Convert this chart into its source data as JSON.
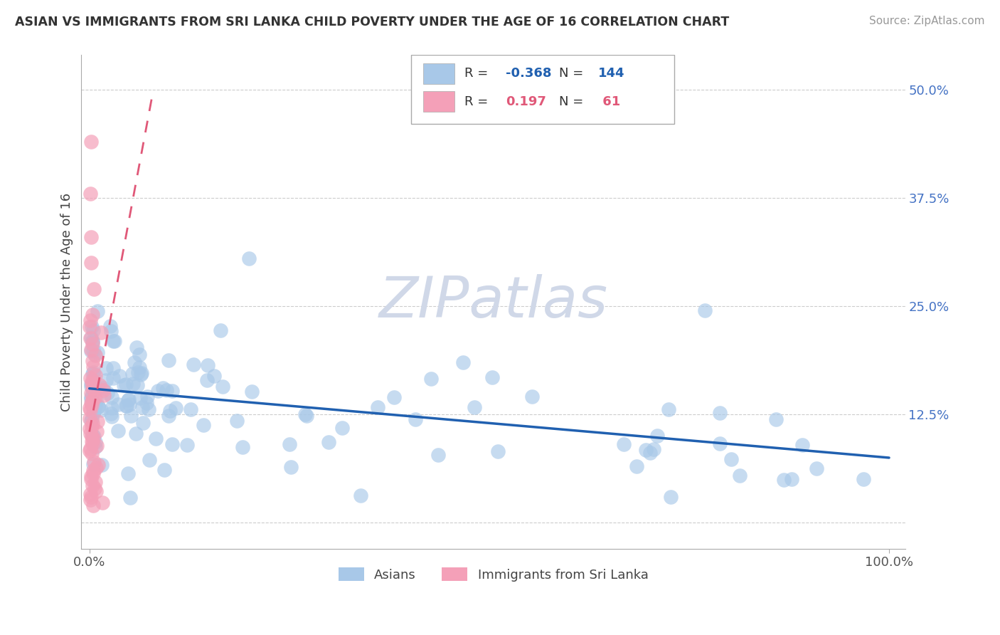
{
  "title": "ASIAN VS IMMIGRANTS FROM SRI LANKA CHILD POVERTY UNDER THE AGE OF 16 CORRELATION CHART",
  "source": "Source: ZipAtlas.com",
  "ylabel": "Child Poverty Under the Age of 16",
  "xlim": [
    -1,
    102
  ],
  "ylim": [
    -3,
    54
  ],
  "yticks": [
    0,
    12.5,
    25.0,
    37.5,
    50.0
  ],
  "ytick_labels": [
    "",
    "12.5%",
    "25.0%",
    "37.5%",
    "50.0%"
  ],
  "xtick_vals": [
    0,
    100
  ],
  "xtick_labels": [
    "0.0%",
    "100.0%"
  ],
  "legend_R1": "-0.368",
  "legend_N1": "144",
  "legend_R2": "0.197",
  "legend_N2": "61",
  "color_asian": "#a8c8e8",
  "color_srilanka": "#f4a0b8",
  "color_asian_line": "#2060b0",
  "color_srilanka_line": "#e05878",
  "color_ytick": "#4472c4",
  "color_xtick": "#555555",
  "watermark": "ZIPatlas",
  "watermark_color": "#d0d8e8",
  "asian_line_x0": 0,
  "asian_line_y0": 15.5,
  "asian_line_x1": 100,
  "asian_line_y1": 7.5,
  "srilanka_line_x0": 0,
  "srilanka_line_y0": 10.5,
  "srilanka_line_x1": 8,
  "srilanka_line_y1": 50
}
